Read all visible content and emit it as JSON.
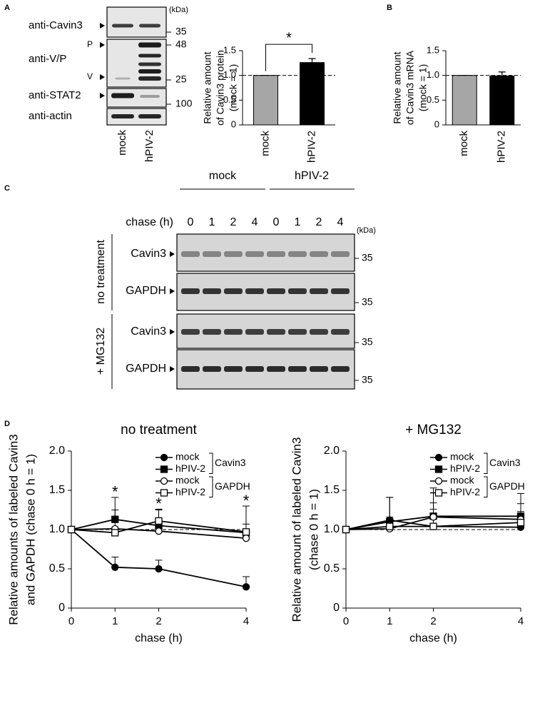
{
  "panel_labels": [
    "A",
    "B",
    "C",
    "D"
  ],
  "blot_a": {
    "unit": "(kDa)",
    "antibodies": [
      "anti-Cavin3",
      "anti-V/P",
      "anti-STAT2",
      "anti-actin"
    ],
    "band_labels": [
      "P",
      "V"
    ],
    "size_markers": [
      35,
      48,
      25,
      100
    ],
    "lanes": [
      "mock",
      "hPIV-2"
    ]
  },
  "blot_c": {
    "groups": [
      "mock",
      "hPIV-2"
    ],
    "chase_label": "chase (h)",
    "lanes": [
      0,
      1,
      2,
      4,
      0,
      1,
      2,
      4
    ],
    "unit": "(kDa)",
    "treatments": [
      "no treatment",
      "+ MG132"
    ],
    "rows": [
      "Cavin3",
      "GAPDH",
      "Cavin3",
      "GAPDH"
    ],
    "size_marker": 35
  },
  "chart_data": [
    {
      "type": "bar",
      "y_label": [
        "Relative amount",
        "of Cavin3 protein",
        "(mock = 1)"
      ],
      "categories": [
        "mock",
        "hPIV-2"
      ],
      "values": [
        1.0,
        1.26
      ],
      "errors": [
        0,
        0.08
      ],
      "colors": [
        "#a6a6a6",
        "#000000"
      ],
      "ylim": [
        0,
        1.5
      ],
      "yticks": [
        0,
        0.5,
        {
          "value": 1,
          "label": "1.0"
        },
        1.5
      ],
      "reference_line": 1,
      "annotation": "*"
    },
    {
      "type": "bar",
      "y_label": [
        "Relative amount",
        "of Cavin3 mRNA",
        "(mock = 1)"
      ],
      "categories": [
        "mock",
        "hPIV-2"
      ],
      "values": [
        1.0,
        0.99
      ],
      "errors": [
        0,
        0.08
      ],
      "colors": [
        "#a6a6a6",
        "#000000"
      ],
      "ylim": [
        0,
        1.5
      ],
      "yticks": [
        0,
        0.5,
        {
          "value": 1,
          "label": "1.0"
        },
        1.5
      ],
      "reference_line": 1
    },
    {
      "type": "line",
      "title": "no treatment",
      "y_label": [
        "Relative amounts of labeled Cavin3",
        "and GAPDH (chase 0 h = 1)"
      ],
      "x_label": "chase (h)",
      "x": [
        0,
        1,
        2,
        4
      ],
      "xlim": [
        0,
        4
      ],
      "xticks": [
        0,
        1,
        2,
        4
      ],
      "ylim": [
        0,
        2
      ],
      "yticks": [
        0,
        0.5,
        {
          "value": 1,
          "label": "1.0"
        },
        1.5,
        {
          "value": 2,
          "label": "2.0"
        }
      ],
      "reference_line": 1,
      "series": [
        {
          "name": "mock",
          "color": "#000000",
          "marker": "circle",
          "fill": "#000000",
          "values": [
            1,
            0.52,
            0.5,
            0.27
          ],
          "errors": [
            0,
            0.13,
            0.11,
            0.13
          ]
        },
        {
          "name": "hPIV-2",
          "color": "#000000",
          "marker": "square",
          "fill": "#000000",
          "values": [
            1,
            1.13,
            1.05,
            0.96
          ],
          "errors": [
            0,
            0.28,
            0.2,
            0.34
          ]
        },
        {
          "name": "mock",
          "color": "#000000",
          "marker": "circle",
          "fill": "#ffffff",
          "values": [
            1,
            1.01,
            0.98,
            0.89
          ],
          "errors": [
            0,
            0.24,
            0.1,
            0.08
          ]
        },
        {
          "name": "hPIV-2",
          "color": "#000000",
          "marker": "square",
          "fill": "#ffffff",
          "values": [
            1,
            0.96,
            1.11,
            0.97
          ],
          "errors": [
            0,
            0.07,
            0.15,
            0.1
          ]
        }
      ],
      "legend_groups": [
        "Cavin3",
        "GAPDH"
      ],
      "annotations": [
        {
          "text": "*",
          "x": 1
        },
        {
          "text": "*",
          "x": 2
        },
        {
          "text": "*",
          "x": 4
        }
      ]
    },
    {
      "type": "line",
      "title": "+ MG132",
      "y_label": [
        "Relative amount of labeled Cavin3",
        "(chase 0 h = 1)"
      ],
      "x_label": "chase (h)",
      "x": [
        0,
        1,
        2,
        4
      ],
      "xlim": [
        0,
        4
      ],
      "xticks": [
        0,
        1,
        2,
        4
      ],
      "ylim": [
        0,
        2
      ],
      "yticks": [
        0,
        0.5,
        {
          "value": 1,
          "label": "1.0"
        },
        1.5,
        {
          "value": 2,
          "label": "2.0"
        }
      ],
      "reference_line": 1,
      "series": [
        {
          "name": "mock",
          "color": "#000000",
          "marker": "circle",
          "fill": "#000000",
          "values": [
            1,
            1.12,
            1.04,
            1.03
          ],
          "errors": [
            0,
            0.29,
            0.3,
            0.3
          ]
        },
        {
          "name": "hPIV-2",
          "color": "#000000",
          "marker": "square",
          "fill": "#000000",
          "values": [
            1,
            1.1,
            1.17,
            1.17
          ],
          "errors": [
            0,
            0.31,
            0.36,
            0.29
          ]
        },
        {
          "name": "mock",
          "color": "#000000",
          "marker": "circle",
          "fill": "#ffffff",
          "values": [
            1,
            1.01,
            1.16,
            1.13
          ],
          "errors": [
            0,
            0.15,
            0.1,
            0.1
          ]
        },
        {
          "name": "hPIV-2",
          "color": "#000000",
          "marker": "square",
          "fill": "#ffffff",
          "values": [
            1,
            1.04,
            1.04,
            1.09
          ],
          "errors": [
            0,
            0.1,
            0.1,
            0.1
          ]
        }
      ],
      "legend_groups": [
        "Cavin3",
        "GAPDH"
      ]
    }
  ]
}
